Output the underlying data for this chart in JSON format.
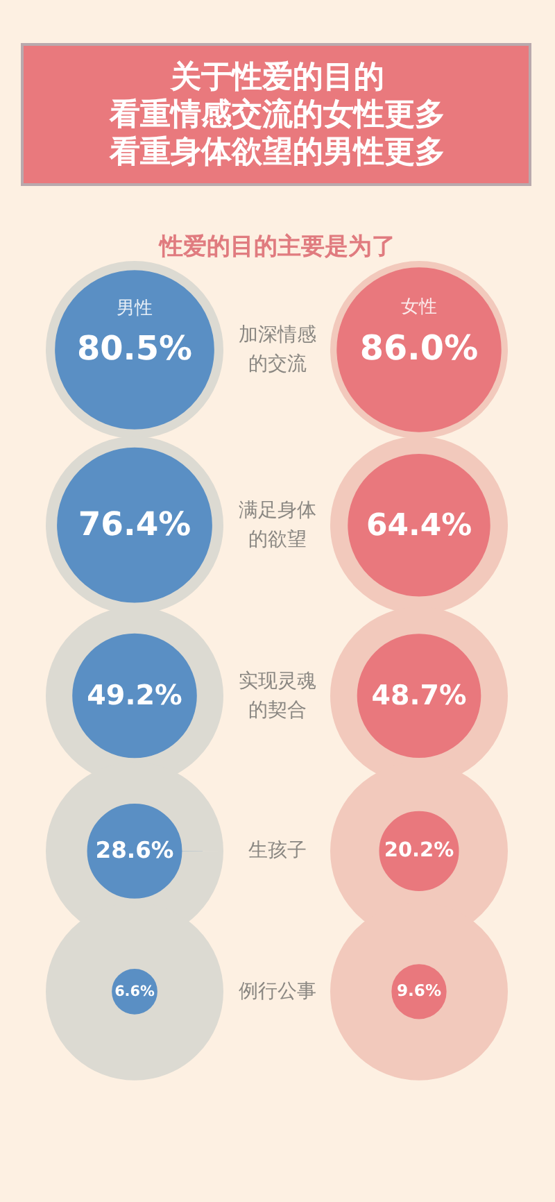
{
  "chart_data": {
    "type": "other",
    "title": "关于性爱的目的",
    "subtitle": "看重情感交流的女性更多看重身体欲望的男性更多",
    "annotations": [
      "性爱的目的主要是为了"
    ],
    "categories": [
      "加深情感的交流",
      "满足身体的欲望",
      "实现灵魂的契合",
      "生孩子",
      "例行公事"
    ],
    "series": [
      {
        "name": "男性",
        "color": "#5a8fc4",
        "values": [
          80.5,
          76.4,
          49.2,
          28.6,
          6.6
        ],
        "value_labels": [
          "80.5%",
          "76.4%",
          "49.2%",
          "28.6%",
          "6.6%"
        ]
      },
      {
        "name": "女性",
        "color": "#e9787d",
        "values": [
          86.0,
          64.4,
          48.7,
          20.2,
          9.6
        ],
        "value_labels": [
          "86.0%",
          "64.4%",
          "48.7%",
          "20.2%",
          "9.6%"
        ]
      }
    ]
  }
}
